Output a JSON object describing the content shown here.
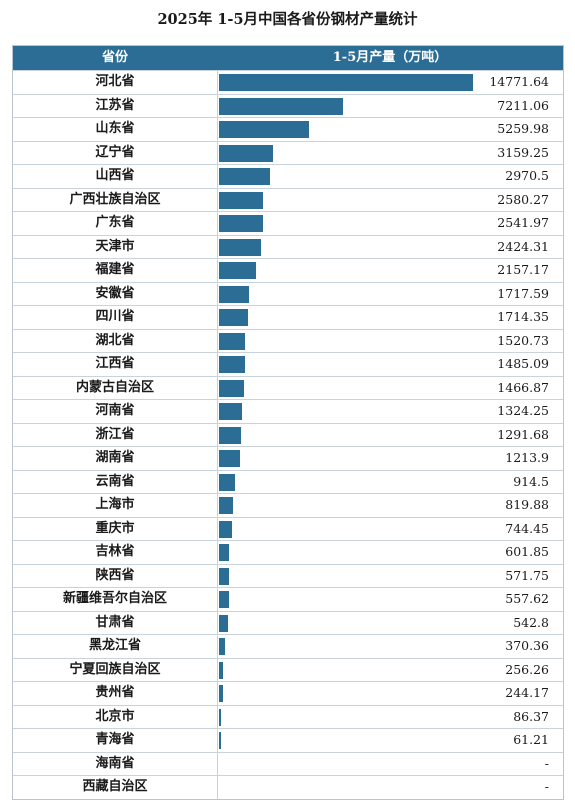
{
  "title": "2025年 1-5月中国各省份钢材产量统计",
  "chart_data": {
    "type": "bar",
    "header": {
      "category": "省份",
      "value": "1-5月产量（万吨）"
    },
    "unit": "万吨",
    "bar_color": "#2c6d96",
    "header_color": "#2c6d96",
    "rows": [
      {
        "name": "河北省",
        "value": 14771.64,
        "label": "14771.64"
      },
      {
        "name": "江苏省",
        "value": 7211.06,
        "label": "7211.06"
      },
      {
        "name": "山东省",
        "value": 5259.98,
        "label": "5259.98"
      },
      {
        "name": "辽宁省",
        "value": 3159.25,
        "label": "3159.25"
      },
      {
        "name": "山西省",
        "value": 2970.5,
        "label": "2970.5"
      },
      {
        "name": "广西壮族自治区",
        "value": 2580.27,
        "label": "2580.27"
      },
      {
        "name": "广东省",
        "value": 2541.97,
        "label": "2541.97"
      },
      {
        "name": "天津市",
        "value": 2424.31,
        "label": "2424.31"
      },
      {
        "name": "福建省",
        "value": 2157.17,
        "label": "2157.17"
      },
      {
        "name": "安徽省",
        "value": 1717.59,
        "label": "1717.59"
      },
      {
        "name": "四川省",
        "value": 1714.35,
        "label": "1714.35"
      },
      {
        "name": "湖北省",
        "value": 1520.73,
        "label": "1520.73"
      },
      {
        "name": "江西省",
        "value": 1485.09,
        "label": "1485.09"
      },
      {
        "name": "内蒙古自治区",
        "value": 1466.87,
        "label": "1466.87"
      },
      {
        "name": "河南省",
        "value": 1324.25,
        "label": "1324.25"
      },
      {
        "name": "浙江省",
        "value": 1291.68,
        "label": "1291.68"
      },
      {
        "name": "湖南省",
        "value": 1213.9,
        "label": "1213.9"
      },
      {
        "name": "云南省",
        "value": 914.5,
        "label": "914.5"
      },
      {
        "name": "上海市",
        "value": 819.88,
        "label": "819.88"
      },
      {
        "name": "重庆市",
        "value": 744.45,
        "label": "744.45"
      },
      {
        "name": "吉林省",
        "value": 601.85,
        "label": "601.85"
      },
      {
        "name": "陕西省",
        "value": 571.75,
        "label": "571.75"
      },
      {
        "name": "新疆维吾尔自治区",
        "value": 557.62,
        "label": "557.62"
      },
      {
        "name": "甘肃省",
        "value": 542.8,
        "label": "542.8"
      },
      {
        "name": "黑龙江省",
        "value": 370.36,
        "label": "370.36"
      },
      {
        "name": "宁夏回族自治区",
        "value": 256.26,
        "label": "256.26"
      },
      {
        "name": "贵州省",
        "value": 244.17,
        "label": "244.17"
      },
      {
        "name": "北京市",
        "value": 86.37,
        "label": "86.37"
      },
      {
        "name": "青海省",
        "value": 61.21,
        "label": "61.21"
      },
      {
        "name": "海南省",
        "value": null,
        "label": "-"
      },
      {
        "name": "西藏自治区",
        "value": null,
        "label": "-"
      }
    ]
  }
}
